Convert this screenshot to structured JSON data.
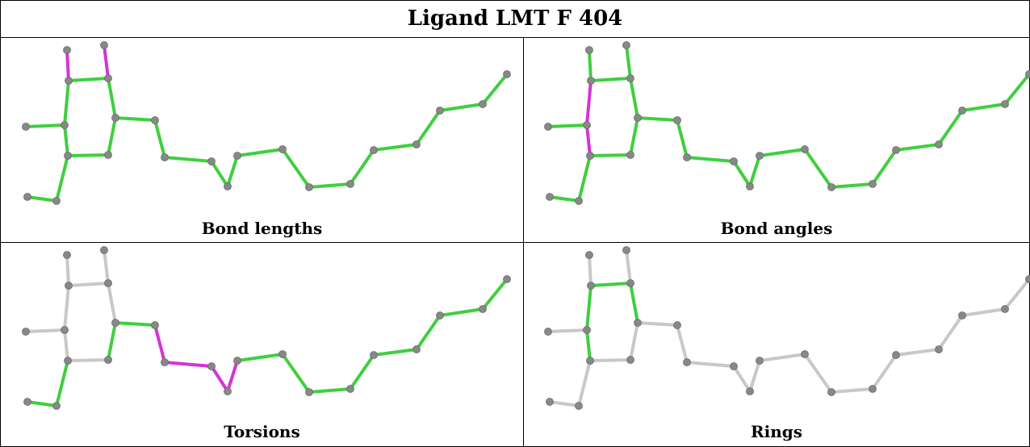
{
  "title": "Ligand LMT F 404",
  "panels": [
    {
      "id": "bond-lengths",
      "caption": "Bond lengths",
      "highlight_bonds": [
        [
          0,
          2
        ],
        [
          1,
          3
        ]
      ],
      "highlight_color": "#d633d6",
      "base_color": "#3fcf3f"
    },
    {
      "id": "bond-angles",
      "caption": "Bond angles",
      "highlight_bonds": [
        [
          2,
          5
        ],
        [
          5,
          6
        ]
      ],
      "highlight_color": "#d633d6",
      "base_color": "#3fcf3f"
    },
    {
      "id": "torsions",
      "caption": "Torsions",
      "highlight_bonds": [
        [
          9,
          10
        ],
        [
          10,
          11
        ],
        [
          11,
          12
        ],
        [
          12,
          13
        ]
      ],
      "highlight_color": "#d633d6",
      "base_color": "#3fcf3f",
      "gray_bonds": [
        [
          0,
          2
        ],
        [
          1,
          3
        ],
        [
          2,
          3
        ],
        [
          2,
          5
        ],
        [
          4,
          5
        ],
        [
          5,
          6
        ],
        [
          3,
          8
        ],
        [
          6,
          8
        ],
        [
          6,
          7
        ]
      ],
      "gray_color": "#c8c8c8"
    },
    {
      "id": "rings",
      "caption": "Rings",
      "green_bonds": [
        [
          2,
          3
        ],
        [
          2,
          5
        ],
        [
          5,
          6
        ],
        [
          3,
          8
        ],
        [
          6,
          8
        ]
      ],
      "base_color": "#c8c8c8",
      "ring_color": "#3fcf3f"
    }
  ],
  "colors": {
    "atom": "#888888",
    "border": "#000000"
  }
}
